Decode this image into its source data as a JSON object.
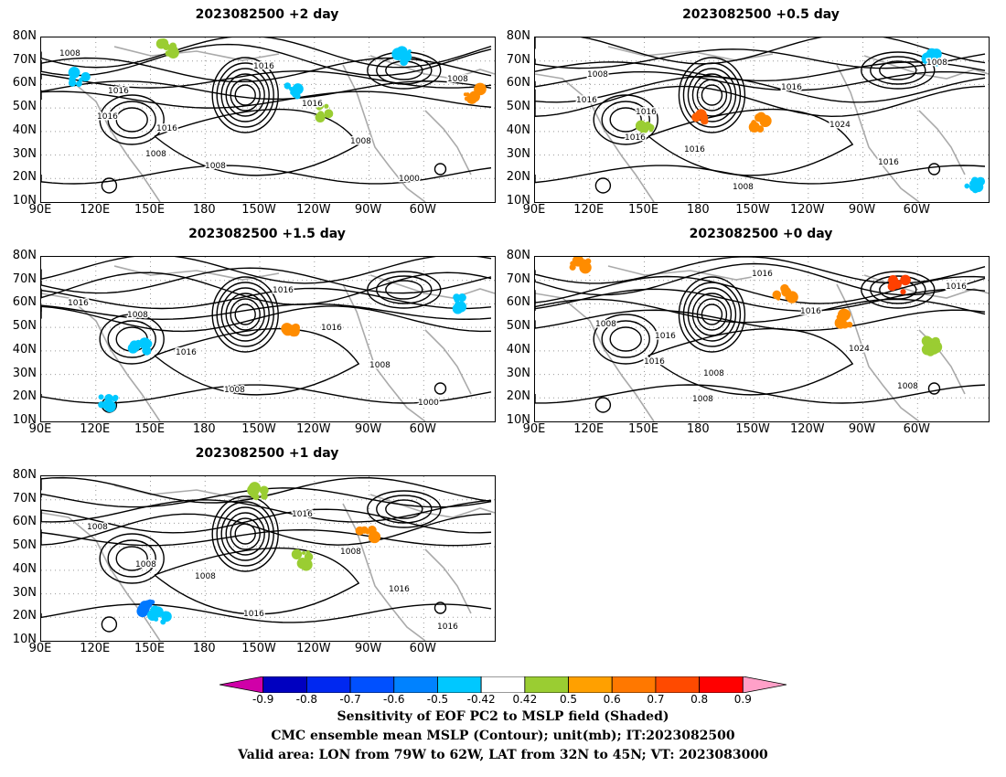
{
  "panels": [
    {
      "id": "p1",
      "title": "2023082500 +2 day",
      "contour_labels": [
        "1008",
        "1016",
        "1016",
        "1008",
        "1016",
        "1016",
        "1008",
        "1000",
        "1008",
        "1016",
        "1008"
      ],
      "blobs": [
        [
          0.08,
          0.25,
          "#00c8ff"
        ],
        [
          0.28,
          0.06,
          "#9acd32"
        ],
        [
          0.55,
          0.32,
          "#00c8ff"
        ],
        [
          0.95,
          0.35,
          "#ff8c00"
        ],
        [
          0.62,
          0.45,
          "#9acd32"
        ],
        [
          0.8,
          0.12,
          "#00c8ff"
        ]
      ]
    },
    {
      "id": "p2",
      "title": "2023082500 +0.5 day",
      "contour_labels": [
        "1008",
        "1016",
        "1016",
        "1008",
        "1016",
        "1024",
        "1016",
        "1008",
        "1016",
        "1016"
      ],
      "blobs": [
        [
          0.5,
          0.52,
          "#ff8c00"
        ],
        [
          0.37,
          0.48,
          "#ff6000"
        ],
        [
          0.88,
          0.12,
          "#00c8ff"
        ],
        [
          0.97,
          0.9,
          "#00c8ff"
        ],
        [
          0.24,
          0.55,
          "#9acd32"
        ]
      ]
    },
    {
      "id": "p3",
      "title": "2023082500 +1.5 day",
      "contour_labels": [
        "1008",
        "1016",
        "1008",
        "1016",
        "1016",
        "1008",
        "1000",
        "1016"
      ],
      "blobs": [
        [
          0.22,
          0.55,
          "#00c8ff"
        ],
        [
          0.55,
          0.45,
          "#ff8c00"
        ],
        [
          0.92,
          0.28,
          "#00c8ff"
        ],
        [
          0.15,
          0.88,
          "#00c8ff"
        ]
      ]
    },
    {
      "id": "p4",
      "title": "2023082500 +0 day",
      "contour_labels": [
        "1016",
        "1008",
        "1016",
        "1016",
        "1024",
        "1008",
        "1016",
        "1008",
        "1016",
        "1008"
      ],
      "blobs": [
        [
          0.1,
          0.05,
          "#ff8c00"
        ],
        [
          0.55,
          0.22,
          "#ff8c00"
        ],
        [
          0.8,
          0.18,
          "#ff4000"
        ],
        [
          0.68,
          0.38,
          "#ff8c00"
        ],
        [
          0.88,
          0.55,
          "#9acd32"
        ]
      ]
    },
    {
      "id": "p5",
      "title": "2023082500 +1 day",
      "contour_labels": [
        "1008",
        "1016",
        "1016",
        "1008",
        "1016",
        "1016",
        "1008",
        "1008"
      ],
      "blobs": [
        [
          0.24,
          0.8,
          "#0078ff"
        ],
        [
          0.26,
          0.85,
          "#00c8ff"
        ],
        [
          0.72,
          0.35,
          "#ff8c00"
        ],
        [
          0.58,
          0.5,
          "#9acd32"
        ],
        [
          0.48,
          0.1,
          "#9acd32"
        ]
      ]
    }
  ],
  "y_axis_labels": [
    "80N",
    "70N",
    "60N",
    "50N",
    "40N",
    "30N",
    "20N",
    "10N"
  ],
  "x_axis_labels": [
    "90E",
    "120E",
    "150E",
    "180",
    "150W",
    "120W",
    "90W",
    "60W"
  ],
  "colorbar": {
    "colors": [
      "#d000a8",
      "#0000c0",
      "#0028f0",
      "#0050ff",
      "#0082ff",
      "#00c8ff",
      "#ffffff",
      "#9acd32",
      "#ffa000",
      "#ff7800",
      "#ff4a00",
      "#ff0000",
      "#ffa0c8"
    ],
    "labels": [
      "-0.9",
      "-0.8",
      "-0.7",
      "-0.6",
      "-0.5",
      "-0.42",
      "0.42",
      "0.5",
      "0.6",
      "0.7",
      "0.8",
      "0.9"
    ]
  },
  "caption": {
    "line1": "Sensitivity of EOF PC2 to MSLP field (Shaded)",
    "line2": "CMC ensemble mean MSLP (Contour); unit(mb); IT:2023082500",
    "line3": "Valid area: LON from 79W to 62W, LAT from 32N to 45N; VT: 2023083000"
  }
}
